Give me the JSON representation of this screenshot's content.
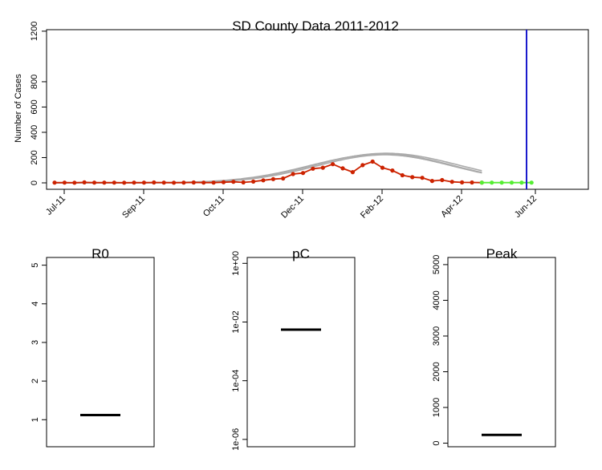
{
  "chart_data": [
    {
      "type": "line",
      "title": "SD County Data 2011-2012",
      "xlabel": "",
      "ylabel": "Number of Cases",
      "ylim": [
        0,
        1200
      ],
      "yticks": [
        "0",
        "200",
        "400",
        "600",
        "800",
        "1200"
      ],
      "x_ticks": [
        "Jul-11",
        "Sep-11",
        "Oct-11",
        "Dec-11",
        "Feb-12",
        "Apr-12",
        "Jun-12"
      ],
      "grid": false,
      "series": [
        {
          "role": "observed",
          "color": "#cc2200",
          "values": [
            2,
            2,
            1,
            4,
            2,
            2,
            2,
            1,
            2,
            2,
            3,
            2,
            1,
            2,
            3,
            2,
            2,
            5,
            8,
            4,
            10,
            20,
            30,
            35,
            70,
            78,
            112,
            120,
            148,
            115,
            85,
            140,
            168,
            120,
            98,
            60,
            45,
            40,
            15,
            22,
            8,
            4,
            3,
            2
          ]
        },
        {
          "role": "forecast",
          "color": "#55ee33",
          "values": [
            2,
            2,
            2,
            2,
            2,
            2
          ]
        },
        {
          "role": "model-fit",
          "color": "#aaaaaa",
          "note": "gray fitted epidemic curves",
          "peak": 230
        }
      ],
      "vline": {
        "color": "#1a1acc"
      }
    },
    {
      "type": "box",
      "title": "R0",
      "ylim": [
        0.3,
        5.2
      ],
      "yticks": [
        "1",
        "2",
        "3",
        "4",
        "5"
      ],
      "value": 1.12
    },
    {
      "type": "box",
      "title": "pC",
      "scale": "log",
      "yticks": [
        "1e-06",
        "1e-04",
        "1e-02",
        "1e+00"
      ],
      "value": 0.0055
    },
    {
      "type": "box",
      "title": "Peak",
      "ylim": [
        -100,
        5200
      ],
      "yticks": [
        "0",
        "1000",
        "2000",
        "3000",
        "4000",
        "5000"
      ],
      "value": 230
    }
  ]
}
